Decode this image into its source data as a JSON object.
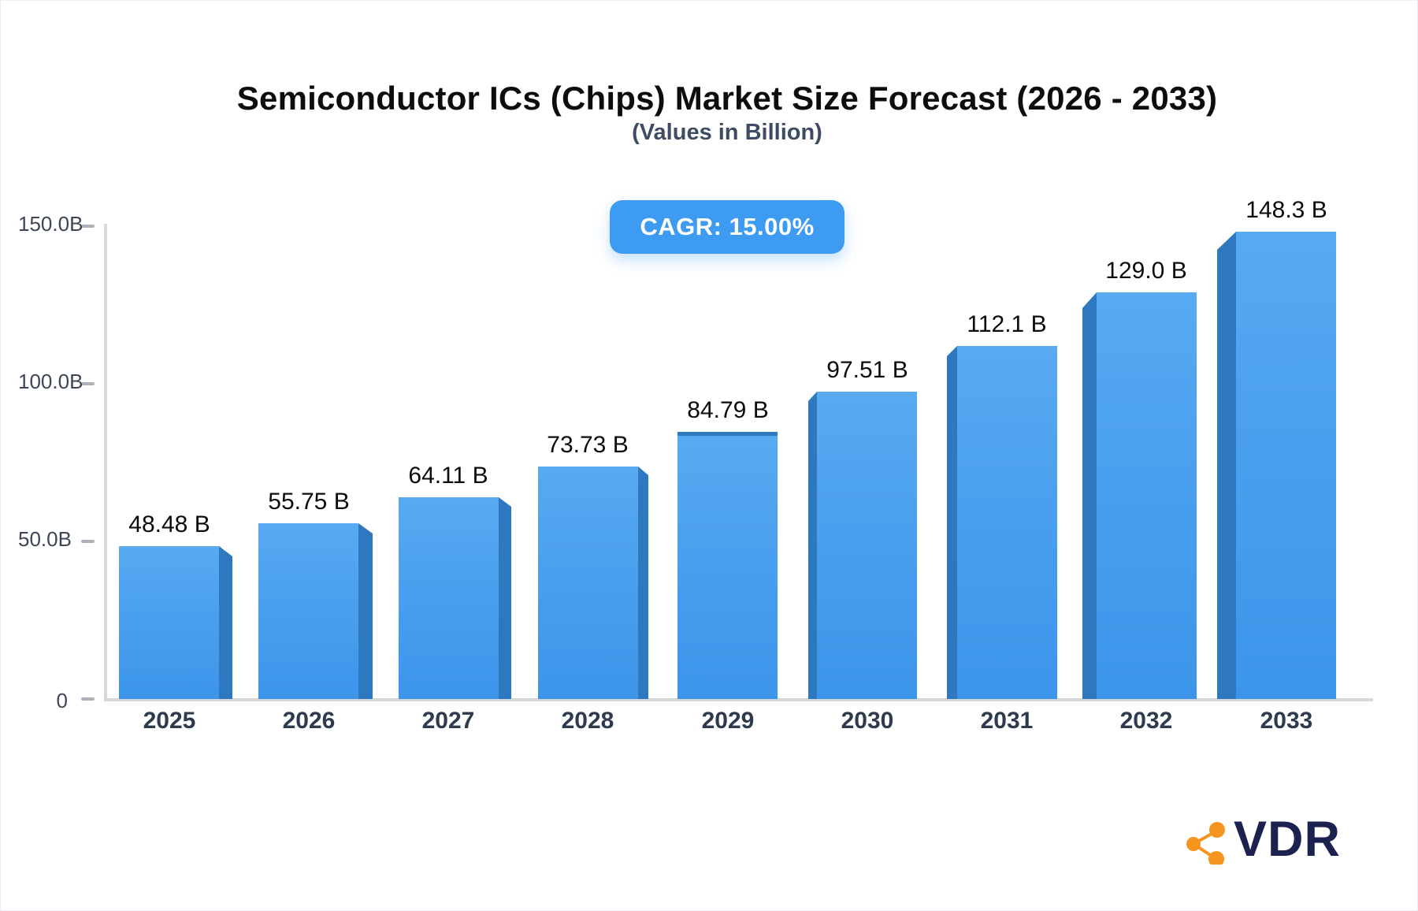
{
  "title": "Semiconductor ICs (Chips) Market Size Forecast (2026 - 2033)",
  "subtitle": "(Values in Billion)",
  "badge": {
    "label": "CAGR: 15.00%"
  },
  "logo": {
    "text": "VDR",
    "icon": "share-network-icon",
    "icon_color": "#f5941f",
    "text_color": "#1c2150"
  },
  "colors": {
    "bar_face_top": "#58aaf1",
    "bar_face_bottom": "#3b95ea",
    "bar_side": "#2e78c0",
    "badge_bg": "#3d9bf2",
    "axis_line": "#d5d8dc",
    "tick": "#abb2bb",
    "y_label": "#3c4656",
    "x_label": "#2e3a4e",
    "value_label": "#0b0b0b",
    "title": "#0d0d0d",
    "subtitle": "#3e4c63"
  },
  "chart_data": {
    "type": "bar",
    "title": "Semiconductor ICs (Chips) Market Size Forecast (2026 - 2033)",
    "subtitle": "(Values in Billion)",
    "annotation": "CAGR: 15.00%",
    "categories": [
      "2025",
      "2026",
      "2027",
      "2028",
      "2029",
      "2030",
      "2031",
      "2032",
      "2033"
    ],
    "values": [
      48.48,
      55.75,
      64.11,
      73.73,
      84.79,
      97.51,
      112.1,
      129.0,
      148.3
    ],
    "value_labels": [
      "48.48 B",
      "55.75 B",
      "64.11 B",
      "73.73 B",
      "84.79 B",
      "97.51 B",
      "112.1 B",
      "129.0 B",
      "148.3 B"
    ],
    "xlabel": "",
    "ylabel": "",
    "ylim": [
      0,
      150
    ],
    "y_tick_levels": [
      0,
      50,
      100,
      150
    ],
    "y_tick_labels": [
      "0",
      "50.0B",
      "100.0B",
      "150.0B"
    ],
    "grid": false,
    "legend": false,
    "style": "3d-perspective-bars"
  }
}
